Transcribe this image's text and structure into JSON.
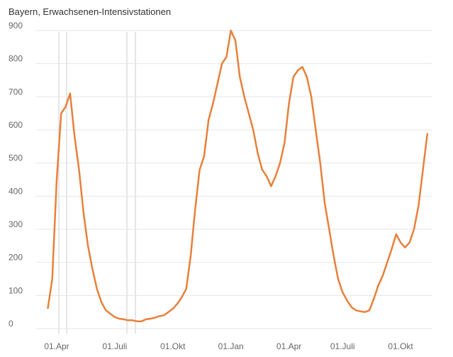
{
  "chart_data": {
    "type": "line",
    "title": "Bayern, Erwachsenen-Intensivstationen",
    "categories": [
      null,
      null,
      "01.Apr",
      null,
      null,
      null,
      null,
      null,
      null,
      null,
      null,
      null,
      null,
      null,
      null,
      "01.Juli",
      null,
      null,
      null,
      null,
      null,
      null,
      null,
      null,
      null,
      null,
      null,
      null,
      "01.Okt",
      null,
      null,
      null,
      null,
      null,
      null,
      null,
      null,
      null,
      null,
      null,
      null,
      "01.Jan",
      null,
      null,
      null,
      null,
      null,
      null,
      null,
      null,
      null,
      null,
      null,
      null,
      "01.Apr",
      null,
      null,
      null,
      null,
      null,
      null,
      null,
      null,
      null,
      null,
      null,
      "01.Juli",
      null,
      null,
      null,
      null,
      null,
      null,
      null,
      null,
      null,
      null,
      null,
      null,
      "01.Okt",
      null,
      null,
      null,
      null,
      null,
      null
    ],
    "values": [
      60,
      150,
      450,
      650,
      670,
      710,
      580,
      480,
      350,
      250,
      180,
      120,
      80,
      55,
      45,
      35,
      30,
      28,
      25,
      25,
      22,
      22,
      28,
      30,
      33,
      38,
      40,
      50,
      60,
      75,
      95,
      120,
      220,
      360,
      480,
      520,
      630,
      680,
      740,
      800,
      820,
      900,
      870,
      760,
      700,
      650,
      600,
      530,
      480,
      460,
      430,
      460,
      500,
      560,
      680,
      760,
      780,
      790,
      760,
      700,
      600,
      500,
      380,
      300,
      220,
      150,
      110,
      85,
      65,
      55,
      52,
      50,
      55,
      90,
      130,
      160,
      200,
      240,
      285,
      260,
      245,
      260,
      300,
      370,
      480,
      590
    ],
    "color": "#e8803a",
    "ylim": [
      0,
      900
    ],
    "yticks": [
      0,
      100,
      200,
      300,
      400,
      500,
      600,
      700,
      800,
      900
    ],
    "grid": true
  }
}
